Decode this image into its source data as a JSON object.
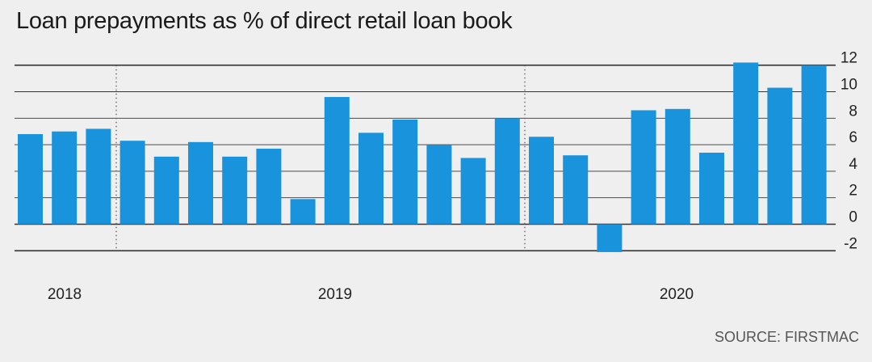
{
  "title": "Loan prepayments as % of direct retail loan book",
  "source": "SOURCE: FIRSTMAC",
  "colors": {
    "bar": "#1a93dd",
    "grid": "#333333",
    "background": "#efefef"
  },
  "chart_data": {
    "type": "bar",
    "title": "Loan prepayments as % of direct retail loan book",
    "ylabel": "",
    "xlabel": "",
    "ylim": [
      -2,
      12
    ],
    "yticks": [
      12,
      10,
      8,
      6,
      4,
      2,
      0,
      -2
    ],
    "y_axis_position": "right",
    "grid": true,
    "period_labels": [
      "2018",
      "2019",
      "2020"
    ],
    "values": [
      6.8,
      7.0,
      7.2,
      6.3,
      5.1,
      6.2,
      5.1,
      5.7,
      1.9,
      9.6,
      6.9,
      7.9,
      6.0,
      5.0,
      8.0,
      6.6,
      5.2,
      -2.1,
      8.6,
      8.7,
      5.4,
      12.2,
      10.3,
      12.0
    ]
  }
}
